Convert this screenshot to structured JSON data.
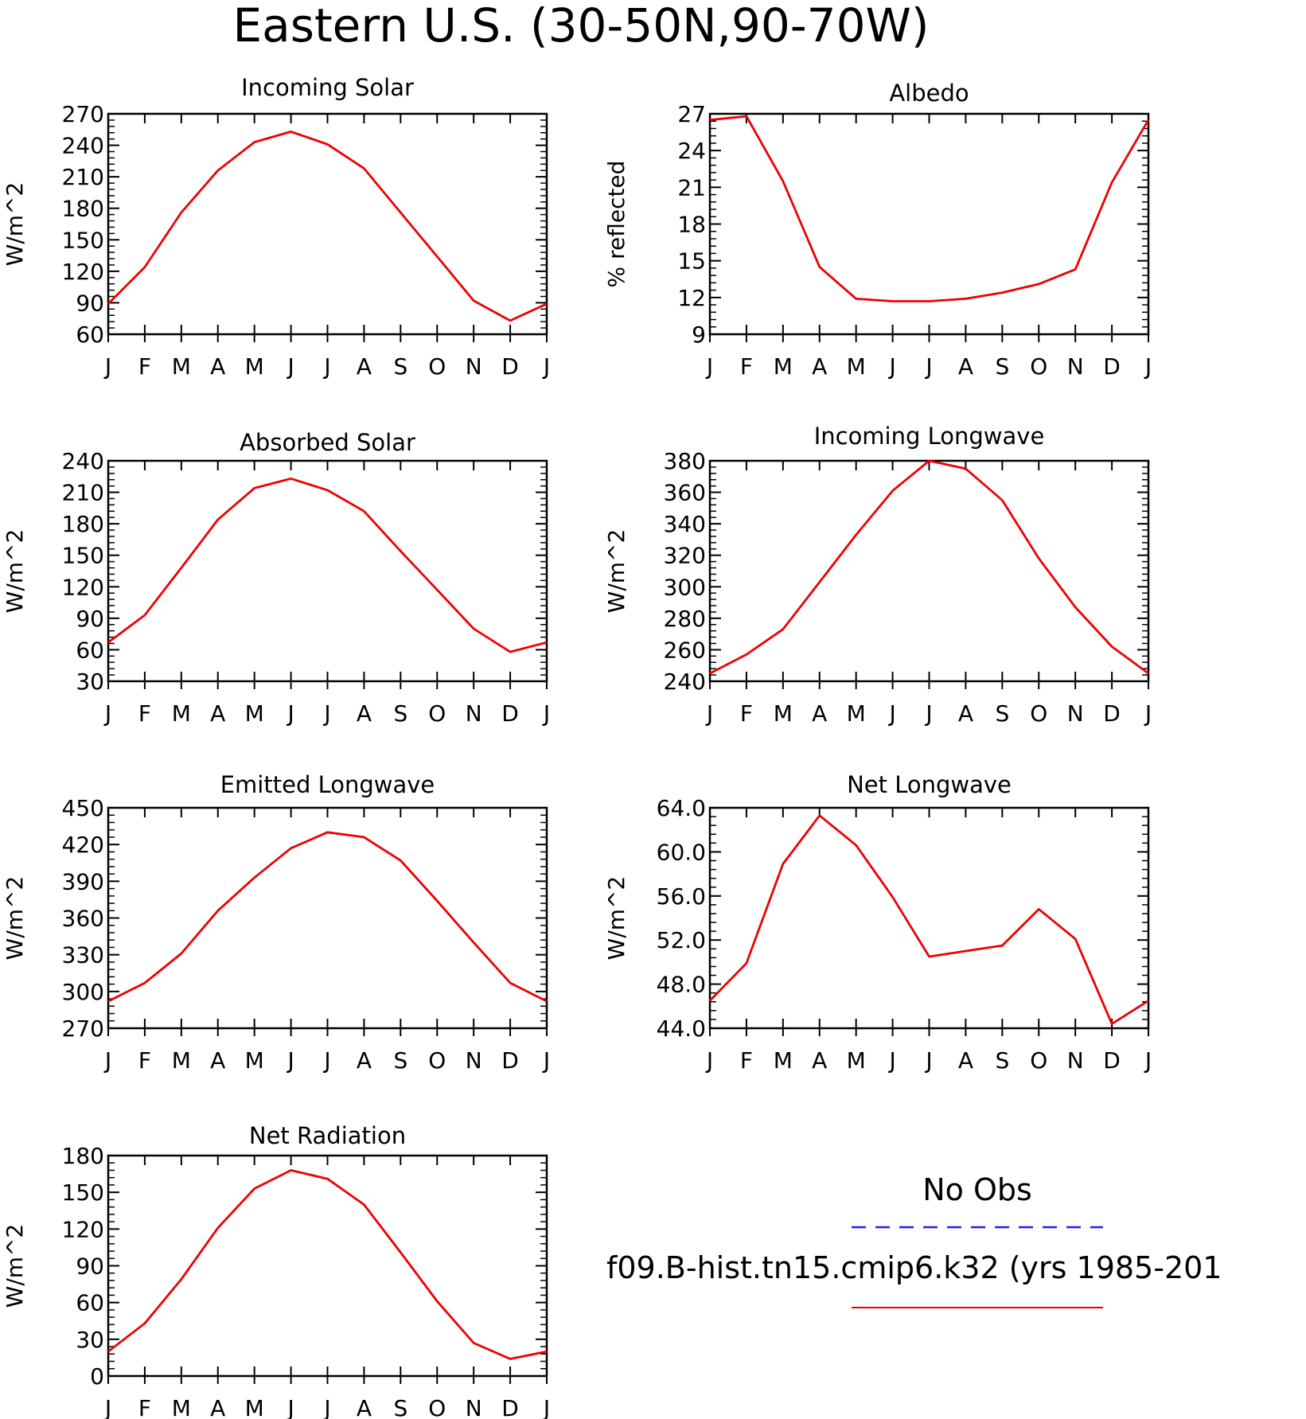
{
  "title": "Eastern U.S. (30-50N,90-70W)",
  "months": [
    "J",
    "F",
    "M",
    "A",
    "M",
    "J",
    "J",
    "A",
    "S",
    "O",
    "N",
    "D",
    "J"
  ],
  "legend": {
    "obs_label": "No Obs",
    "model_label": "f09.B-hist.tn15.cmip6.k32 (yrs 1985-201",
    "obs_color": "#1e1eff",
    "model_color": "#ee0000"
  },
  "chart_data": [
    {
      "type": "line",
      "title": "Incoming Solar",
      "ylabel": "W/m^2",
      "ylim": [
        60,
        270
      ],
      "yticks": [
        "270",
        "240",
        "210",
        "180",
        "150",
        "120",
        "90",
        "60"
      ],
      "ytick_values": [
        270,
        240,
        210,
        180,
        150,
        120,
        90,
        60
      ],
      "x": [
        "J",
        "F",
        "M",
        "A",
        "M",
        "J",
        "J",
        "A",
        "S",
        "O",
        "N",
        "D",
        "J"
      ],
      "series": [
        {
          "values": [
            89,
            124,
            176,
            216,
            243,
            253,
            241,
            218,
            176,
            134,
            92,
            73,
            89
          ]
        }
      ]
    },
    {
      "type": "line",
      "title": "Albedo",
      "ylabel": "% reflected",
      "ylim": [
        9,
        27
      ],
      "yticks": [
        "27",
        "24",
        "21",
        "18",
        "15",
        "12",
        "9"
      ],
      "ytick_values": [
        27,
        24,
        21,
        18,
        15,
        12,
        9
      ],
      "x": [
        "J",
        "F",
        "M",
        "A",
        "M",
        "J",
        "J",
        "A",
        "S",
        "O",
        "N",
        "D",
        "J"
      ],
      "series": [
        {
          "values": [
            26.5,
            26.8,
            21.5,
            14.5,
            11.9,
            11.7,
            11.7,
            11.9,
            12.4,
            13.1,
            14.3,
            21.4,
            26.5
          ]
        }
      ]
    },
    {
      "type": "line",
      "title": "Absorbed Solar",
      "ylabel": "W/m^2",
      "ylim": [
        30,
        240
      ],
      "yticks": [
        "240",
        "210",
        "180",
        "150",
        "120",
        "90",
        "60",
        "30"
      ],
      "ytick_values": [
        240,
        210,
        180,
        150,
        120,
        90,
        60,
        30
      ],
      "x": [
        "J",
        "F",
        "M",
        "A",
        "M",
        "J",
        "J",
        "A",
        "S",
        "O",
        "N",
        "D",
        "J"
      ],
      "series": [
        {
          "values": [
            67,
            93,
            138,
            184,
            214,
            223,
            212,
            192,
            154,
            117,
            80,
            58,
            67
          ]
        }
      ]
    },
    {
      "type": "line",
      "title": "Incoming Longwave",
      "ylabel": "W/m^2",
      "ylim": [
        240,
        380
      ],
      "yticks": [
        "380",
        "360",
        "340",
        "320",
        "300",
        "280",
        "260",
        "240"
      ],
      "ytick_values": [
        380,
        360,
        340,
        320,
        300,
        280,
        260,
        240
      ],
      "x": [
        "J",
        "F",
        "M",
        "A",
        "M",
        "J",
        "J",
        "A",
        "S",
        "O",
        "N",
        "D",
        "J"
      ],
      "series": [
        {
          "values": [
            245,
            257,
            273,
            303,
            333,
            361,
            380,
            375,
            355,
            318,
            287,
            262,
            245
          ]
        }
      ]
    },
    {
      "type": "line",
      "title": "Emitted Longwave",
      "ylabel": "W/m^2",
      "ylim": [
        270,
        450
      ],
      "yticks": [
        "450",
        "420",
        "390",
        "360",
        "330",
        "300",
        "270"
      ],
      "ytick_values": [
        450,
        420,
        390,
        360,
        330,
        300,
        270
      ],
      "x": [
        "J",
        "F",
        "M",
        "A",
        "M",
        "J",
        "J",
        "A",
        "S",
        "O",
        "N",
        "D",
        "J"
      ],
      "series": [
        {
          "values": [
            292,
            307,
            331,
            366,
            393,
            417,
            430,
            426,
            407,
            374,
            340,
            307,
            292
          ]
        }
      ]
    },
    {
      "type": "line",
      "title": "Net Longwave",
      "ylabel": "W/m^2",
      "ylim": [
        44,
        64
      ],
      "yticks": [
        "64.0",
        "60.0",
        "56.0",
        "52.0",
        "48.0",
        "44.0"
      ],
      "ytick_values": [
        64,
        60,
        56,
        52,
        48,
        44
      ],
      "x": [
        "J",
        "F",
        "M",
        "A",
        "M",
        "J",
        "J",
        "A",
        "S",
        "O",
        "N",
        "D",
        "J"
      ],
      "series": [
        {
          "values": [
            46.5,
            49.9,
            58.9,
            63.3,
            60.6,
            55.9,
            50.5,
            51.0,
            51.5,
            54.8,
            52.1,
            44.4,
            46.5
          ]
        }
      ]
    },
    {
      "type": "line",
      "title": "Net Radiation",
      "ylabel": "W/m^2",
      "ylim": [
        0,
        180
      ],
      "yticks": [
        "180",
        "150",
        "120",
        "90",
        "60",
        "30",
        "0"
      ],
      "ytick_values": [
        180,
        150,
        120,
        90,
        60,
        30,
        0
      ],
      "x": [
        "J",
        "F",
        "M",
        "A",
        "M",
        "J",
        "J",
        "A",
        "S",
        "O",
        "N",
        "D",
        "J"
      ],
      "series": [
        {
          "values": [
            20,
            43,
            79,
            121,
            153,
            168,
            161,
            140,
            101,
            61,
            27,
            14,
            20
          ]
        }
      ]
    }
  ]
}
